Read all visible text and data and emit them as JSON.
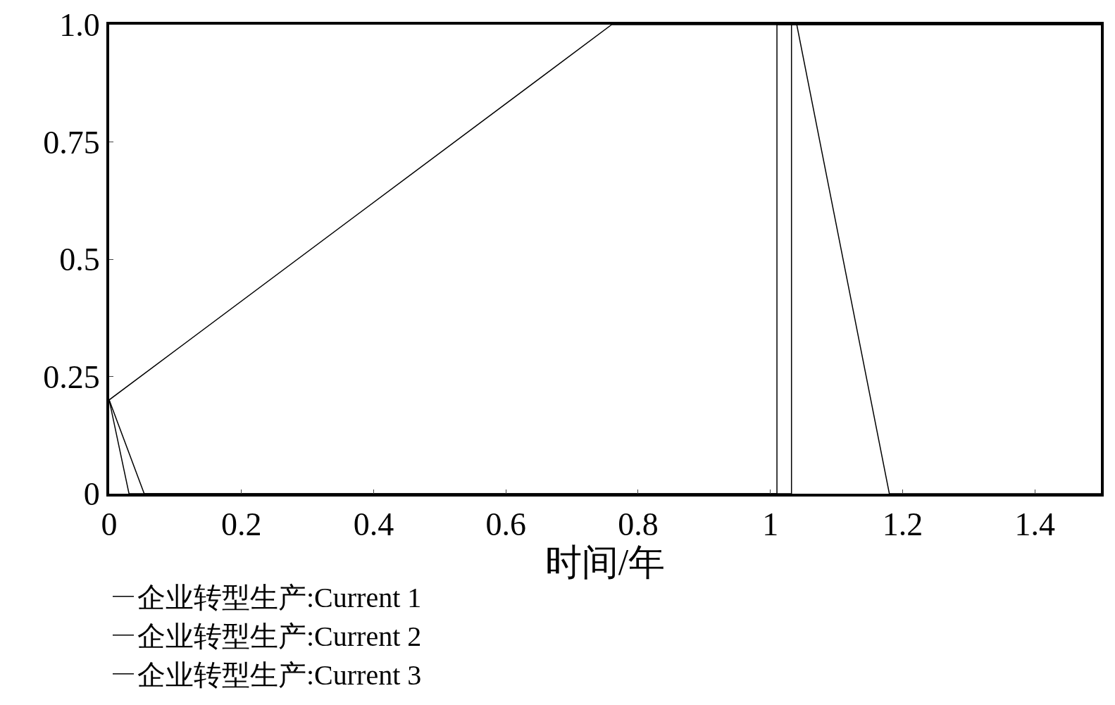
{
  "chart_data": {
    "type": "line",
    "xlabel": "时间/年",
    "xlim": [
      0,
      1.5
    ],
    "xticks": [
      0,
      0.2,
      0.4,
      0.6,
      0.8,
      1,
      1.2,
      1.4
    ],
    "ylim": [
      0,
      1
    ],
    "yticks": [
      0,
      0.25,
      0.5,
      0.75,
      {
        "value": 1,
        "label": "1.0"
      }
    ],
    "grid": false,
    "legend": "bottom",
    "marker": "none",
    "line_style": "solid",
    "series": [
      {
        "name": "企业转型生产:Current 1",
        "color": "#000000",
        "x": [
          0,
          0.76,
          1.04,
          1.18,
          1.5
        ],
        "values": [
          0.2,
          1,
          1,
          0,
          0
        ]
      },
      {
        "name": "企业转型生产:Current 2",
        "color": "#000000",
        "x": [
          0,
          0.053,
          1.032,
          1.032,
          1.5
        ],
        "values": [
          0.2,
          0,
          0,
          1,
          1
        ]
      },
      {
        "name": "企业转型生产:Current 3",
        "color": "#000000",
        "x": [
          0,
          0.03,
          1.01,
          1.01,
          1.5
        ],
        "values": [
          0.2,
          0,
          0,
          1,
          1
        ]
      }
    ]
  }
}
